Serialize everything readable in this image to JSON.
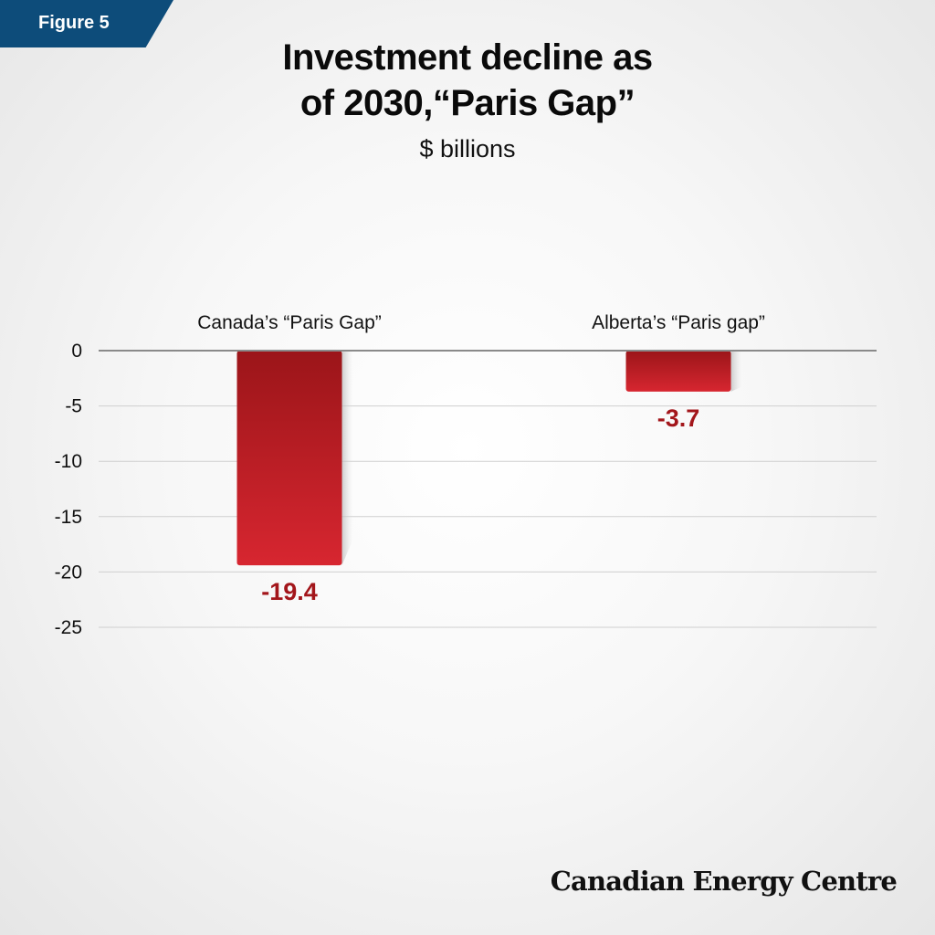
{
  "badge": {
    "label": "Figure 5"
  },
  "header": {
    "title_lines": [
      "Investment decline as",
      "of 2030,“Paris Gap”"
    ],
    "subtitle": "$ billions"
  },
  "colors": {
    "badge": "#0d4c7a",
    "bar_top": "#9b1519",
    "bar_bottom": "#d72630",
    "value_label": "#a3161b",
    "axis_line": "#8a8a8a",
    "grid": "#cfcfcf"
  },
  "chart_data": {
    "type": "bar",
    "title": "Investment decline as of 2030,“Paris Gap”",
    "subtitle": "$ billions",
    "categories": [
      "Canada’s “Paris Gap”",
      "Alberta’s “Paris gap”"
    ],
    "values": [
      -19.4,
      -3.7
    ],
    "value_labels": [
      "-19.4",
      "-3.7"
    ],
    "yticks": [
      "0",
      "-5",
      "-10",
      "-15",
      "-20",
      "-25"
    ],
    "ytick_values": [
      0,
      -5,
      -10,
      -15,
      -20,
      -25
    ],
    "ylim": [
      -25,
      0
    ],
    "grid": true,
    "category_label_position": "top"
  },
  "footer": {
    "brand": "Canadian Energy Centre"
  }
}
